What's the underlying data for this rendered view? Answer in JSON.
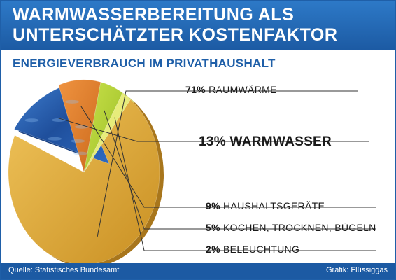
{
  "header": {
    "title_line1": "WARMWASSERBEREITUNG ALS",
    "title_line2": "UNTERSCHÄTZTER KOSTENFAKTOR"
  },
  "subtitle": "ENERGIEVERBRAUCH IM PRIVATHAUSHALT",
  "chart_data": {
    "type": "pie",
    "title": "ENERGIEVERBRAUCH IM PRIVATHAUSHALT",
    "slices": [
      {
        "label": "RAUMWÄRME",
        "value": 71,
        "value_label": "71%",
        "color": "#dfa93c",
        "exploded": false
      },
      {
        "label": "WARMWASSER",
        "value": 13,
        "value_label": "13%",
        "color": "#2b5fb0",
        "exploded": true
      },
      {
        "label": "HAUSHALTSGERÄTE",
        "value": 9,
        "value_label": "9%",
        "color": "#e07a26",
        "exploded": false
      },
      {
        "label": "KOCHEN, TROCKNEN, BÜGELN",
        "value": 5,
        "value_label": "5%",
        "color": "#b6d236",
        "exploded": false
      },
      {
        "label": "BELEUCHTUNG",
        "value": 2,
        "value_label": "2%",
        "color": "#e7ec7a",
        "exploded": false
      }
    ],
    "unit": "%"
  },
  "footer": {
    "source": "Quelle: Statistisches Bundesamt",
    "credit": "Grafik: Flüssiggas"
  }
}
